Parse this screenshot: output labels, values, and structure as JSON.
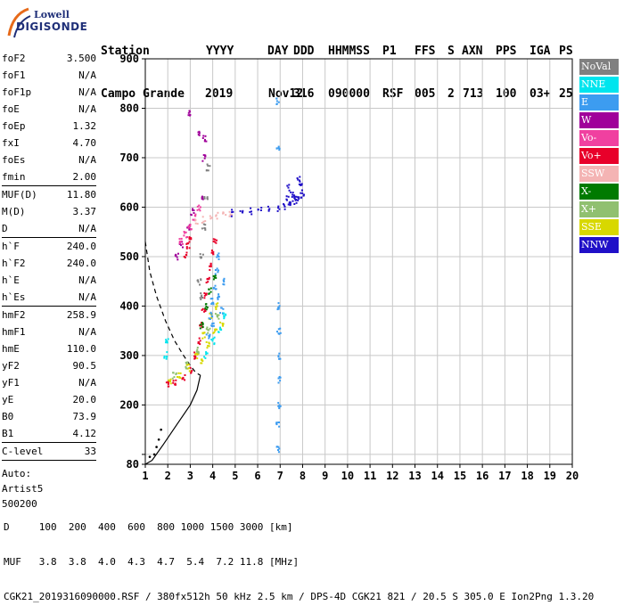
{
  "logo": {
    "line1": "Lowell",
    "line2": "DIGISONDE"
  },
  "header": {
    "labels": [
      "Station",
      "YYYY",
      "DAY",
      "DDD",
      "HHMMSS",
      "P1",
      "FFS",
      "S",
      "AXN",
      "PPS",
      "IGA",
      "PS"
    ],
    "values": [
      "Campo Grande",
      "2019",
      "Nov12",
      "316",
      "090000",
      "RSF",
      "005",
      "2",
      "713",
      "100",
      "03+",
      "25"
    ]
  },
  "params": {
    "group1": [
      [
        "foF2",
        "3.500"
      ],
      [
        "foF1",
        "N/A"
      ],
      [
        "foF1p",
        "N/A"
      ],
      [
        "foE",
        "N/A"
      ],
      [
        "foEp",
        "1.32"
      ],
      [
        "fxI",
        "4.70"
      ],
      [
        "foEs",
        "N/A"
      ],
      [
        "fmin",
        "2.00"
      ]
    ],
    "group2": [
      [
        "MUF(D)",
        "11.80"
      ],
      [
        "M(D)",
        "3.37"
      ],
      [
        "D",
        "N/A"
      ]
    ],
    "group3": [
      [
        "h`F",
        "240.0"
      ],
      [
        "h`F2",
        "240.0"
      ],
      [
        "h`E",
        "N/A"
      ],
      [
        "h`Es",
        "N/A"
      ]
    ],
    "group4": [
      [
        "hmF2",
        "258.9"
      ],
      [
        "hmF1",
        "N/A"
      ],
      [
        "hmE",
        "110.0"
      ],
      [
        "yF2",
        "90.5"
      ],
      [
        "yF1",
        "N/A"
      ],
      [
        "yE",
        "20.0"
      ],
      [
        "B0",
        "73.9"
      ],
      [
        "B1",
        "4.12"
      ]
    ],
    "group5": [
      [
        "C-level",
        "33"
      ]
    ],
    "auto": [
      "Auto:",
      "Artist5",
      "500200"
    ]
  },
  "legend": [
    {
      "label": "NoVal",
      "color": "#808080"
    },
    {
      "label": "NNE",
      "color": "#00e5ee"
    },
    {
      "label": "E",
      "color": "#3c9cf0"
    },
    {
      "label": "W",
      "color": "#a0009a"
    },
    {
      "label": "Vo-",
      "color": "#f040a0"
    },
    {
      "label": "Vo+",
      "color": "#e8002a"
    },
    {
      "label": "SSW",
      "color": "#f4b4b4"
    },
    {
      "label": "X-",
      "color": "#007a00"
    },
    {
      "label": "X+",
      "color": "#90c070"
    },
    {
      "label": "SSE",
      "color": "#d8d800"
    },
    {
      "label": "NNW",
      "color": "#2010c8"
    }
  ],
  "footer": {
    "line1": "D     100  200  400  600  800 1000 1500 3000 [km]",
    "line2": "MUF   3.8  3.8  4.0  4.3  4.7  5.4  7.2 11.8 [MHz]",
    "line3": "CGK21_2019316090000.RSF / 380fx512h 50 kHz 2.5 km / DPS-4D CGK21 821 / 20.5 S 305.0 E Ion2Png 1.3.20"
  },
  "chart_data": {
    "type": "scatter",
    "title": "",
    "xlabel": "",
    "ylabel": "",
    "xlim": [
      1,
      20
    ],
    "ylim": [
      80,
      900
    ],
    "x_ticks": [
      1,
      2,
      3,
      4,
      5,
      6,
      7,
      8,
      9,
      10,
      11,
      12,
      13,
      14,
      15,
      16,
      17,
      18,
      19,
      20
    ],
    "y_ticks": [
      80,
      100,
      200,
      300,
      400,
      500,
      600,
      700,
      800,
      900
    ],
    "y_tick_labels": [
      "80",
      "",
      "200",
      "300",
      "400",
      "500",
      "600",
      "700",
      "800",
      "900"
    ],
    "grid": true,
    "legend_position": "right",
    "series": [
      {
        "name": "Vo+",
        "color": "#e8002a",
        "points": [
          [
            2.0,
            240
          ],
          [
            2.3,
            245
          ],
          [
            2.7,
            255
          ],
          [
            3.0,
            270
          ],
          [
            3.2,
            300
          ],
          [
            3.4,
            330
          ],
          [
            3.5,
            360
          ],
          [
            3.6,
            390
          ],
          [
            3.7,
            420
          ],
          [
            3.8,
            450
          ],
          [
            3.9,
            480
          ],
          [
            4.0,
            510
          ],
          [
            4.1,
            530
          ],
          [
            2.8,
            505
          ],
          [
            2.9,
            520
          ],
          [
            3.0,
            535
          ]
        ]
      },
      {
        "name": "SSE",
        "color": "#d8d800",
        "points": [
          [
            2.1,
            250
          ],
          [
            2.5,
            258
          ],
          [
            2.9,
            275
          ],
          [
            3.3,
            300
          ],
          [
            3.6,
            340
          ],
          [
            3.9,
            380
          ],
          [
            4.2,
            400
          ],
          [
            3.5,
            290
          ],
          [
            3.8,
            320
          ],
          [
            4.1,
            350
          ],
          [
            4.4,
            360
          ]
        ]
      },
      {
        "name": "E",
        "color": "#3c9cf0",
        "points": [
          [
            3.8,
            340
          ],
          [
            3.9,
            380
          ],
          [
            4.0,
            410
          ],
          [
            4.1,
            440
          ],
          [
            4.2,
            470
          ],
          [
            4.3,
            420
          ],
          [
            4.4,
            390
          ],
          [
            4.5,
            450
          ],
          [
            4.0,
            360
          ],
          [
            4.2,
            500
          ],
          [
            6.9,
            815
          ],
          [
            6.9,
            720
          ],
          [
            6.9,
            400
          ],
          [
            6.95,
            350
          ],
          [
            6.95,
            300
          ],
          [
            7.0,
            250
          ],
          [
            6.95,
            200
          ],
          [
            6.9,
            160
          ],
          [
            6.9,
            110
          ]
        ]
      },
      {
        "name": "NNE",
        "color": "#00e5ee",
        "points": [
          [
            1.9,
            300
          ],
          [
            1.95,
            330
          ],
          [
            3.7,
            300
          ],
          [
            4.0,
            330
          ],
          [
            4.3,
            350
          ],
          [
            4.5,
            380
          ]
        ]
      },
      {
        "name": "W",
        "color": "#a0009a",
        "points": [
          [
            2.4,
            500
          ],
          [
            2.6,
            525
          ],
          [
            2.9,
            560
          ],
          [
            3.1,
            590
          ],
          [
            3.5,
            620
          ],
          [
            3.6,
            700
          ],
          [
            3.65,
            740
          ],
          [
            3.0,
            790
          ],
          [
            3.4,
            750
          ]
        ]
      },
      {
        "name": "Vo-",
        "color": "#f040a0",
        "points": [
          [
            2.6,
            530
          ],
          [
            2.8,
            545
          ],
          [
            3.0,
            560
          ],
          [
            3.2,
            580
          ],
          [
            3.4,
            600
          ]
        ]
      },
      {
        "name": "SSW",
        "color": "#f4b4b4",
        "points": [
          [
            3.3,
            570
          ],
          [
            3.6,
            575
          ],
          [
            3.9,
            580
          ],
          [
            4.2,
            583
          ],
          [
            4.5,
            586
          ],
          [
            4.8,
            588
          ]
        ]
      },
      {
        "name": "X-",
        "color": "#007a00",
        "points": [
          [
            3.5,
            360
          ],
          [
            3.7,
            400
          ],
          [
            3.9,
            430
          ],
          [
            4.1,
            460
          ]
        ]
      },
      {
        "name": "X+",
        "color": "#90c070",
        "points": [
          [
            2.3,
            260
          ],
          [
            2.8,
            280
          ],
          [
            3.3,
            310
          ],
          [
            3.8,
            350
          ],
          [
            4.2,
            380
          ]
        ]
      },
      {
        "name": "NNW",
        "color": "#2010c8",
        "points": [
          [
            4.9,
            588
          ],
          [
            5.3,
            590
          ],
          [
            5.7,
            592
          ],
          [
            6.1,
            594
          ],
          [
            6.5,
            596
          ],
          [
            6.9,
            598
          ],
          [
            7.2,
            600
          ],
          [
            7.4,
            605
          ],
          [
            7.5,
            612
          ],
          [
            7.55,
            625
          ],
          [
            7.6,
            620
          ],
          [
            7.7,
            612
          ],
          [
            7.8,
            615
          ],
          [
            7.9,
            622
          ],
          [
            7.95,
            640
          ],
          [
            7.9,
            650
          ],
          [
            7.8,
            655
          ],
          [
            8.0,
            625
          ],
          [
            7.35,
            640
          ],
          [
            7.3,
            620
          ]
        ]
      },
      {
        "name": "NoVal",
        "color": "#808080",
        "points": [
          [
            3.5,
            500
          ],
          [
            3.6,
            560
          ],
          [
            3.7,
            620
          ],
          [
            3.8,
            680
          ],
          [
            3.4,
            450
          ],
          [
            3.5,
            420
          ]
        ]
      }
    ],
    "profile_solid": [
      [
        1.0,
        80
      ],
      [
        1.3,
        88
      ],
      [
        1.8,
        120
      ],
      [
        2.4,
        160
      ],
      [
        3.0,
        200
      ],
      [
        3.3,
        230
      ],
      [
        3.45,
        260
      ]
    ],
    "profile_dashed": [
      [
        1.0,
        530
      ],
      [
        1.2,
        470
      ],
      [
        1.5,
        420
      ],
      [
        1.9,
        370
      ],
      [
        2.3,
        330
      ],
      [
        2.7,
        300
      ],
      [
        3.0,
        280
      ],
      [
        3.25,
        265
      ],
      [
        3.45,
        260
      ]
    ],
    "lower_dots": [
      [
        1.2,
        95
      ],
      [
        1.4,
        100
      ],
      [
        1.5,
        115
      ],
      [
        1.6,
        130
      ],
      [
        1.7,
        150
      ]
    ]
  }
}
